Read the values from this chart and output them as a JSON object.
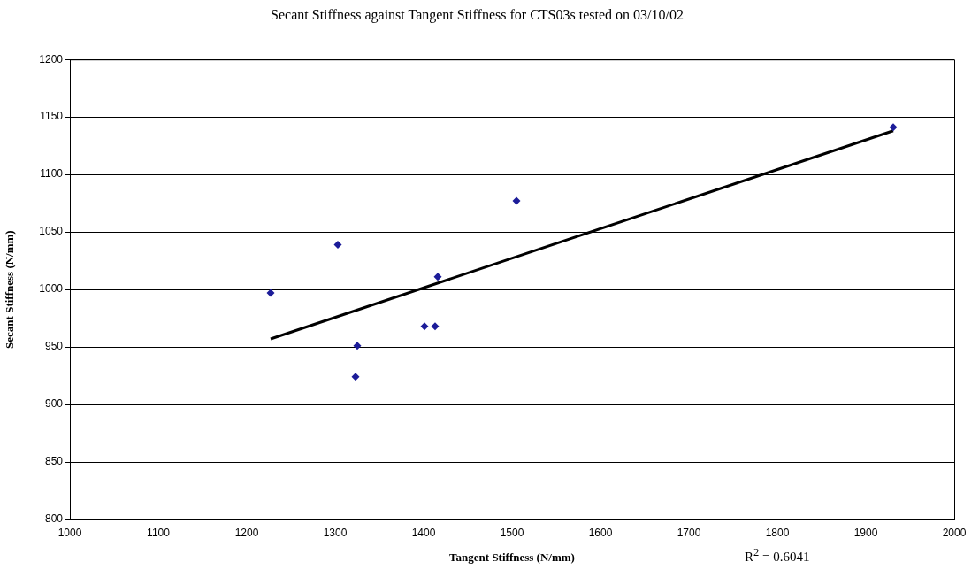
{
  "chart_data": {
    "type": "scatter",
    "title": "Secant Stiffness against Tangent Stiffness for CTS03s tested on 03/10/02",
    "xlabel": "Tangent Stiffness (N/mm)",
    "ylabel": "Secant Stiffness (N/mm)",
    "series": [
      {
        "color": "#1c1c99",
        "marker": "diamond",
        "x": [
          1227,
          1303,
          1325,
          1323,
          1401,
          1413,
          1416,
          1505,
          1931
        ],
        "values": [
          997,
          1039,
          951,
          924,
          968,
          968,
          1011,
          1077,
          1141
        ]
      },
      {
        "type": "line",
        "color": "#000000",
        "marker": "none",
        "line_style": "solid",
        "x": [
          1227,
          1931
        ],
        "values": [
          957,
          1138
        ]
      }
    ],
    "xlim": [
      1000,
      2000
    ],
    "xticks": [
      1000,
      1100,
      1200,
      1300,
      1400,
      1500,
      1600,
      1700,
      1800,
      1900,
      2000
    ],
    "ylim": [
      800,
      1200
    ],
    "yticks": [
      800,
      850,
      900,
      950,
      1000,
      1050,
      1100,
      1150,
      1200
    ],
    "grid": "y",
    "legend": false,
    "annotations": [
      "R$^{2}$ = 0.6041"
    ]
  }
}
